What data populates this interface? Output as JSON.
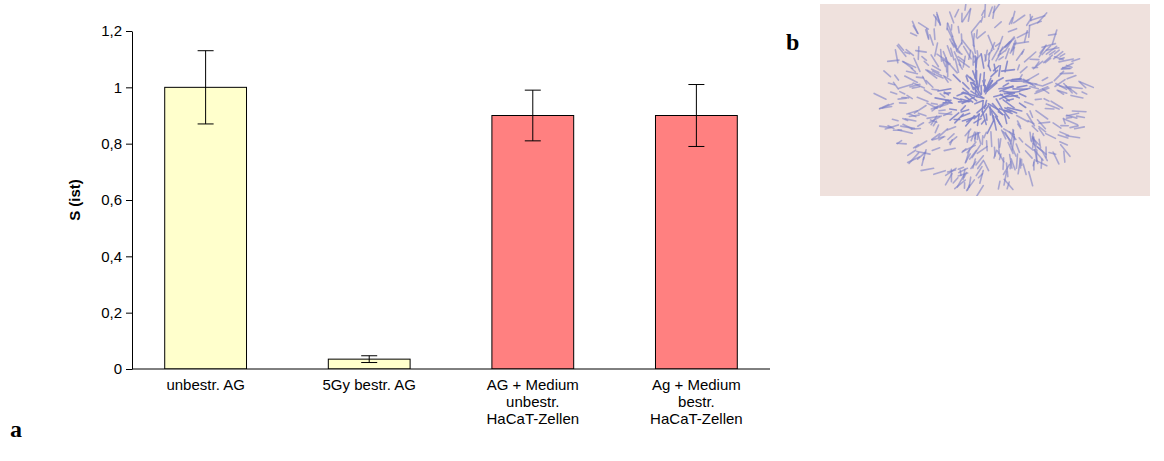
{
  "chart_data": {
    "type": "bar",
    "y_label": "S (ist)",
    "categories": [
      "unbestr. AG",
      "5Gy bestr. AG",
      "AG + Medium unbestr. HaCaT-Zellen",
      "Ag + Medium bestr. HaCaT-Zellen"
    ],
    "values": [
      1.0,
      0.035,
      0.9,
      0.9
    ],
    "errors": [
      0.13,
      0.012,
      0.09,
      0.11
    ],
    "colors": [
      "#ffffcc",
      "#ffffcc",
      "#ff8080",
      "#ff8080"
    ],
    "ylim": [
      0,
      1.2
    ],
    "yticks": [
      0,
      {
        "value": 0.2,
        "label": "0,2"
      },
      {
        "value": 0.4,
        "label": "0,4"
      },
      {
        "value": 0.6,
        "label": "0,6"
      },
      {
        "value": 0.8,
        "label": "0,8"
      },
      1,
      {
        "value": 1.2,
        "label": "1,2"
      }
    ],
    "grid": false
  },
  "panel_labels": [
    "a",
    "b"
  ]
}
